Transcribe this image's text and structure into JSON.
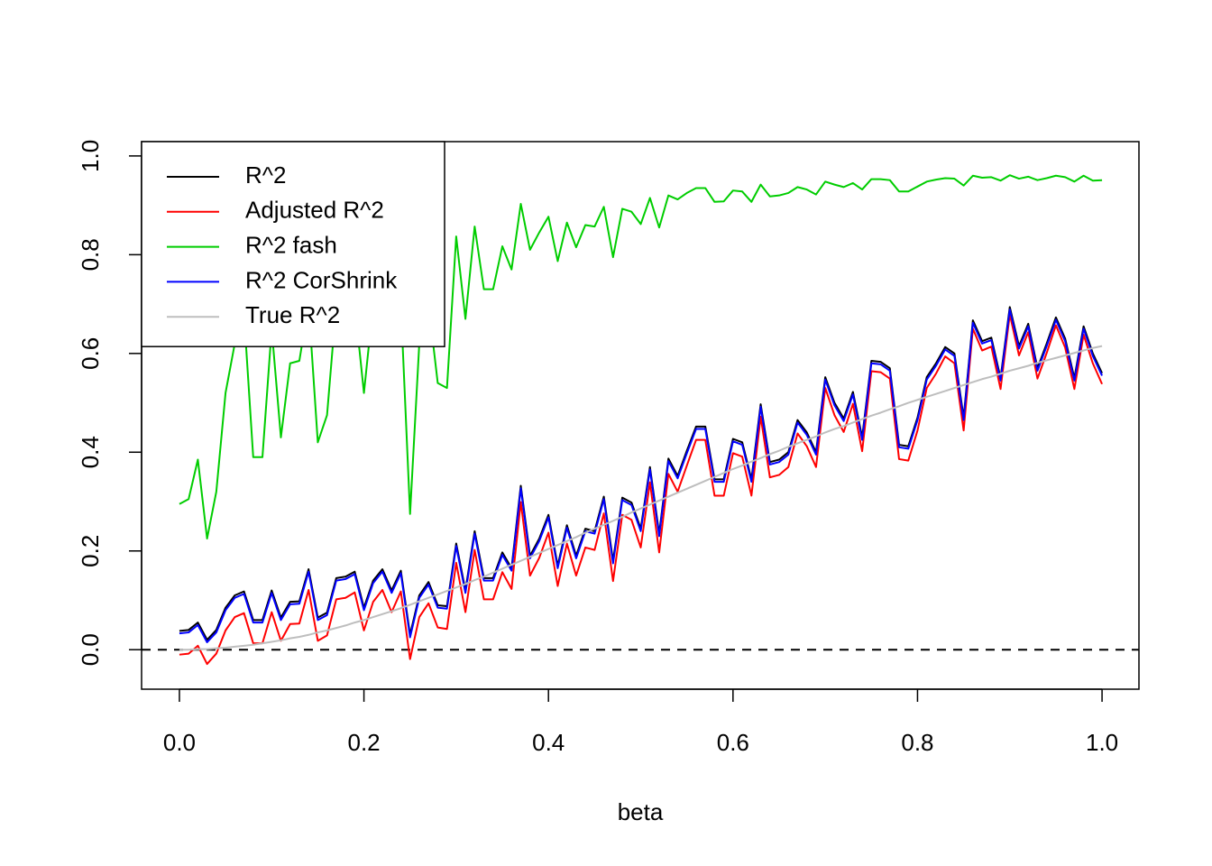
{
  "chart_data": {
    "type": "line",
    "xlabel": "beta",
    "xlim": [
      -0.041,
      1.04
    ],
    "ylim": [
      -0.08,
      1.029
    ],
    "xticks": [
      {
        "value": 0,
        "label": "0.0"
      },
      0.2,
      0.4,
      0.6,
      0.8,
      {
        "value": 1,
        "label": "1.0"
      }
    ],
    "yticks": [
      {
        "value": 0,
        "label": "0.0"
      },
      0.2,
      0.4,
      0.6,
      0.8,
      {
        "value": 1,
        "label": "1.0"
      }
    ],
    "grid": false,
    "hline": 0,
    "legend": "topleft",
    "x": [
      0,
      0.01,
      0.02,
      0.03,
      0.04,
      0.05,
      0.06,
      0.07,
      0.08,
      0.09,
      0.1,
      0.11,
      0.12,
      0.13,
      0.14,
      0.15,
      0.16,
      0.17,
      0.18,
      0.19,
      0.2,
      0.21,
      0.22,
      0.23,
      0.24,
      0.25,
      0.26,
      0.27,
      0.28,
      0.29,
      0.3,
      0.31,
      0.32,
      0.33,
      0.34,
      0.35,
      0.36,
      0.37,
      0.38,
      0.39,
      0.4,
      0.41,
      0.42,
      0.43,
      0.44,
      0.45,
      0.46,
      0.47,
      0.48,
      0.49,
      0.5,
      0.51,
      0.52,
      0.53,
      0.54,
      0.55,
      0.56,
      0.57,
      0.58,
      0.59,
      0.6,
      0.61,
      0.62,
      0.63,
      0.64,
      0.65,
      0.66,
      0.67,
      0.68,
      0.69,
      0.7,
      0.71,
      0.72,
      0.73,
      0.74,
      0.75,
      0.76,
      0.77,
      0.78,
      0.79,
      0.8,
      0.81,
      0.82,
      0.83,
      0.84,
      0.85,
      0.86,
      0.87,
      0.88,
      0.89,
      0.9,
      0.91,
      0.92,
      0.93,
      0.94,
      0.95,
      0.96,
      0.97,
      0.98,
      0.99,
      1
    ],
    "series": [
      {
        "name": "R^2",
        "color": "#000000",
        "values": [
          0.038,
          0.04,
          0.055,
          0.02,
          0.04,
          0.085,
          0.11,
          0.118,
          0.06,
          0.06,
          0.12,
          0.065,
          0.097,
          0.098,
          0.163,
          0.065,
          0.075,
          0.145,
          0.148,
          0.158,
          0.085,
          0.14,
          0.163,
          0.12,
          0.16,
          0.03,
          0.11,
          0.137,
          0.09,
          0.088,
          0.215,
          0.12,
          0.24,
          0.145,
          0.145,
          0.197,
          0.165,
          0.332,
          0.19,
          0.225,
          0.273,
          0.17,
          0.252,
          0.19,
          0.245,
          0.24,
          0.31,
          0.18,
          0.308,
          0.298,
          0.245,
          0.37,
          0.235,
          0.387,
          0.352,
          0.403,
          0.452,
          0.452,
          0.345,
          0.345,
          0.427,
          0.42,
          0.345,
          0.497,
          0.38,
          0.385,
          0.4,
          0.465,
          0.44,
          0.4,
          0.552,
          0.5,
          0.468,
          0.522,
          0.43,
          0.585,
          0.583,
          0.57,
          0.415,
          0.412,
          0.47,
          0.552,
          0.58,
          0.613,
          0.6,
          0.47,
          0.667,
          0.625,
          0.632,
          0.55,
          0.694,
          0.615,
          0.66,
          0.57,
          0.62,
          0.673,
          0.63,
          0.55,
          0.655,
          0.6,
          0.56
        ]
      },
      {
        "name": "Adjusted R^2",
        "color": "#ff0000",
        "values": [
          -0.01,
          -0.008,
          0.008,
          -0.029,
          -0.008,
          0.039,
          0.066,
          0.074,
          0.013,
          0.013,
          0.076,
          0.018,
          0.052,
          0.053,
          0.121,
          0.018,
          0.029,
          0.102,
          0.105,
          0.116,
          0.039,
          0.097,
          0.121,
          0.076,
          0.118,
          -0.019,
          0.066,
          0.094,
          0.045,
          0.042,
          0.176,
          0.076,
          0.202,
          0.102,
          0.102,
          0.157,
          0.123,
          0.299,
          0.15,
          0.186,
          0.237,
          0.129,
          0.215,
          0.15,
          0.207,
          0.202,
          0.276,
          0.139,
          0.273,
          0.263,
          0.207,
          0.339,
          0.197,
          0.356,
          0.32,
          0.373,
          0.425,
          0.425,
          0.312,
          0.312,
          0.398,
          0.391,
          0.312,
          0.472,
          0.349,
          0.354,
          0.37,
          0.438,
          0.412,
          0.37,
          0.53,
          0.475,
          0.441,
          0.498,
          0.402,
          0.564,
          0.562,
          0.549,
          0.386,
          0.383,
          0.444,
          0.53,
          0.559,
          0.594,
          0.58,
          0.444,
          0.65,
          0.606,
          0.614,
          0.528,
          0.679,
          0.596,
          0.643,
          0.549,
          0.601,
          0.657,
          0.612,
          0.528,
          0.638,
          0.58,
          0.538
        ]
      },
      {
        "name": "R^2 fash",
        "color": "#00cd00",
        "values": [
          0.295,
          0.305,
          0.385,
          0.225,
          0.32,
          0.52,
          0.62,
          0.68,
          0.39,
          0.39,
          0.65,
          0.43,
          0.58,
          0.585,
          0.7,
          0.42,
          0.475,
          0.7,
          0.7,
          0.7,
          0.52,
          0.7,
          0.72,
          0.65,
          0.7,
          0.275,
          0.62,
          0.7,
          0.54,
          0.53,
          0.837,
          0.67,
          0.857,
          0.73,
          0.73,
          0.817,
          0.77,
          0.903,
          0.81,
          0.845,
          0.877,
          0.787,
          0.865,
          0.815,
          0.86,
          0.857,
          0.897,
          0.795,
          0.893,
          0.887,
          0.862,
          0.915,
          0.855,
          0.92,
          0.912,
          0.925,
          0.935,
          0.935,
          0.907,
          0.908,
          0.93,
          0.928,
          0.907,
          0.942,
          0.918,
          0.92,
          0.925,
          0.937,
          0.932,
          0.922,
          0.948,
          0.942,
          0.937,
          0.945,
          0.932,
          0.953,
          0.953,
          0.951,
          0.928,
          0.928,
          0.938,
          0.948,
          0.952,
          0.955,
          0.954,
          0.94,
          0.96,
          0.956,
          0.957,
          0.95,
          0.961,
          0.954,
          0.958,
          0.951,
          0.955,
          0.96,
          0.957,
          0.948,
          0.96,
          0.95,
          0.951
        ]
      },
      {
        "name": "R^2 CorShrink",
        "color": "#0000ff",
        "values": [
          0.033,
          0.035,
          0.05,
          0.015,
          0.035,
          0.08,
          0.105,
          0.113,
          0.055,
          0.055,
          0.115,
          0.06,
          0.092,
          0.093,
          0.158,
          0.06,
          0.07,
          0.14,
          0.143,
          0.153,
          0.08,
          0.135,
          0.158,
          0.115,
          0.155,
          0.025,
          0.105,
          0.132,
          0.085,
          0.083,
          0.21,
          0.115,
          0.235,
          0.14,
          0.14,
          0.192,
          0.16,
          0.327,
          0.185,
          0.22,
          0.268,
          0.165,
          0.247,
          0.185,
          0.24,
          0.235,
          0.305,
          0.175,
          0.303,
          0.293,
          0.24,
          0.365,
          0.23,
          0.382,
          0.347,
          0.398,
          0.447,
          0.447,
          0.34,
          0.34,
          0.422,
          0.415,
          0.34,
          0.492,
          0.375,
          0.38,
          0.395,
          0.46,
          0.435,
          0.395,
          0.547,
          0.495,
          0.463,
          0.517,
          0.425,
          0.58,
          0.578,
          0.565,
          0.41,
          0.407,
          0.465,
          0.547,
          0.575,
          0.608,
          0.595,
          0.465,
          0.662,
          0.62,
          0.627,
          0.545,
          0.689,
          0.61,
          0.655,
          0.565,
          0.615,
          0.668,
          0.625,
          0.545,
          0.65,
          0.595,
          0.555
        ]
      },
      {
        "name": "True R^2",
        "color": "#bebebe",
        "values": [
          0,
          0,
          0.001,
          0.001,
          0.003,
          0.004,
          0.006,
          0.008,
          0.01,
          0.013,
          0.016,
          0.019,
          0.023,
          0.026,
          0.03,
          0.035,
          0.039,
          0.044,
          0.049,
          0.055,
          0.06,
          0.066,
          0.072,
          0.078,
          0.084,
          0.091,
          0.098,
          0.105,
          0.112,
          0.119,
          0.126,
          0.133,
          0.141,
          0.148,
          0.156,
          0.164,
          0.172,
          0.18,
          0.188,
          0.196,
          0.204,
          0.212,
          0.22,
          0.228,
          0.237,
          0.245,
          0.253,
          0.261,
          0.269,
          0.278,
          0.286,
          0.294,
          0.302,
          0.31,
          0.318,
          0.326,
          0.334,
          0.342,
          0.35,
          0.358,
          0.366,
          0.373,
          0.381,
          0.388,
          0.396,
          0.403,
          0.411,
          0.418,
          0.425,
          0.432,
          0.44,
          0.447,
          0.453,
          0.46,
          0.467,
          0.474,
          0.48,
          0.487,
          0.493,
          0.5,
          0.506,
          0.512,
          0.518,
          0.524,
          0.53,
          0.536,
          0.542,
          0.548,
          0.553,
          0.559,
          0.565,
          0.57,
          0.575,
          0.581,
          0.586,
          0.591,
          0.596,
          0.601,
          0.606,
          0.611,
          0.615
        ]
      }
    ]
  }
}
